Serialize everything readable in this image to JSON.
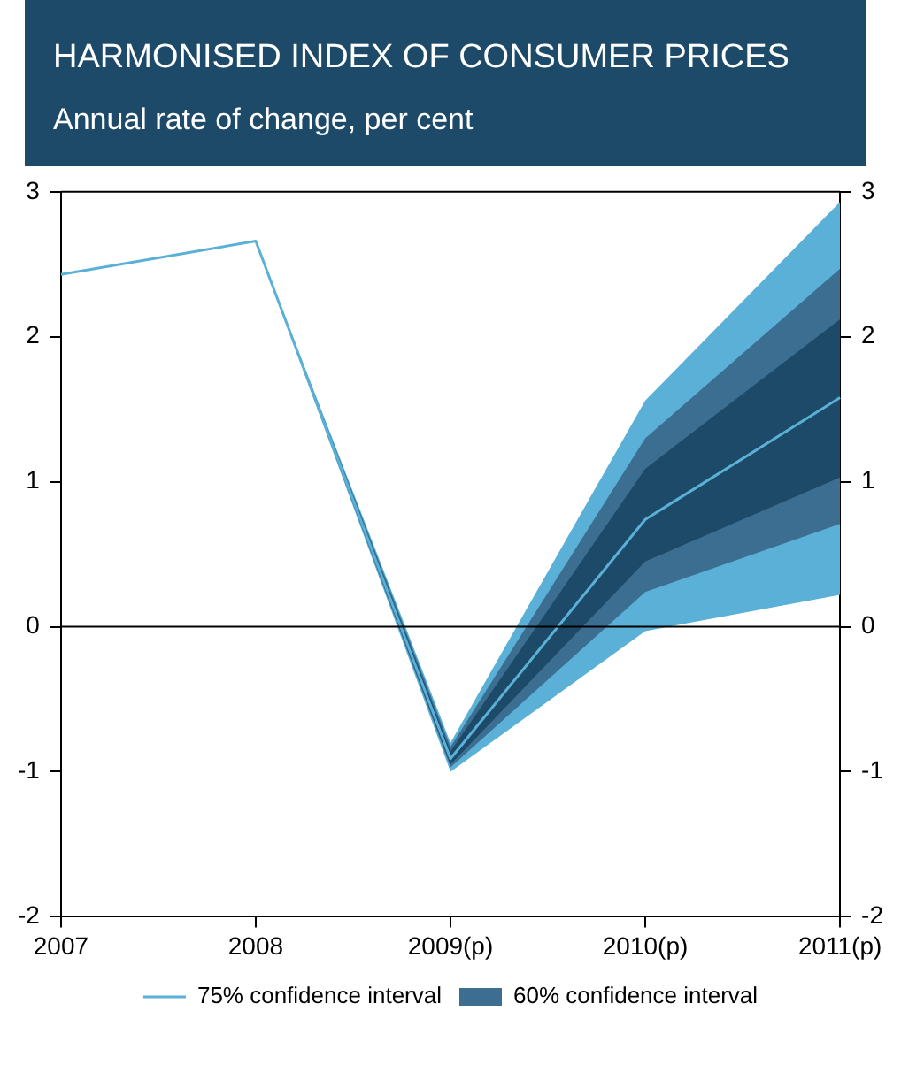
{
  "chart_data": {
    "type": "line",
    "title": "HARMONISED INDEX OF CONSUMER PRICES",
    "subtitle": "Annual rate of change, per cent",
    "categories": [
      "2007",
      "2008",
      "2009(p)",
      "2010(p)",
      "2011(p)"
    ],
    "series": [
      {
        "name": "75% confidence interval",
        "color": "#5ab0d6",
        "values": [
          2.43,
          2.66,
          -0.91,
          0.74,
          1.58
        ],
        "lower": [
          null,
          2.66,
          -1.0,
          -0.03,
          0.22
        ],
        "upper": [
          null,
          2.66,
          -0.8,
          1.56,
          2.93
        ]
      },
      {
        "type": "area",
        "name": "60% confidence interval",
        "color": "#3c6e91",
        "values": [
          null,
          null,
          null,
          null,
          null
        ],
        "lower": [
          null,
          2.66,
          -0.97,
          0.24,
          0.71
        ],
        "upper": [
          null,
          2.66,
          -0.83,
          1.3,
          2.47
        ]
      },
      {
        "type": "area",
        "color": "#1d4a68",
        "values": [
          null,
          null,
          null,
          null,
          null
        ],
        "lower": [
          null,
          2.66,
          -0.95,
          0.45,
          1.03
        ],
        "upper": [
          null,
          2.66,
          -0.86,
          1.09,
          2.12
        ]
      }
    ],
    "ylim": [
      -2,
      3
    ],
    "yticks": [
      -2,
      -1,
      0,
      1,
      2,
      3
    ],
    "y2lim": [
      -2,
      3
    ],
    "y2ticks": [
      -2,
      -1,
      0,
      1,
      2,
      3
    ],
    "ref_lines": [
      {
        "axis": "y",
        "value": 0,
        "color": "#000000"
      }
    ],
    "grid": false,
    "legend": "bottom"
  }
}
